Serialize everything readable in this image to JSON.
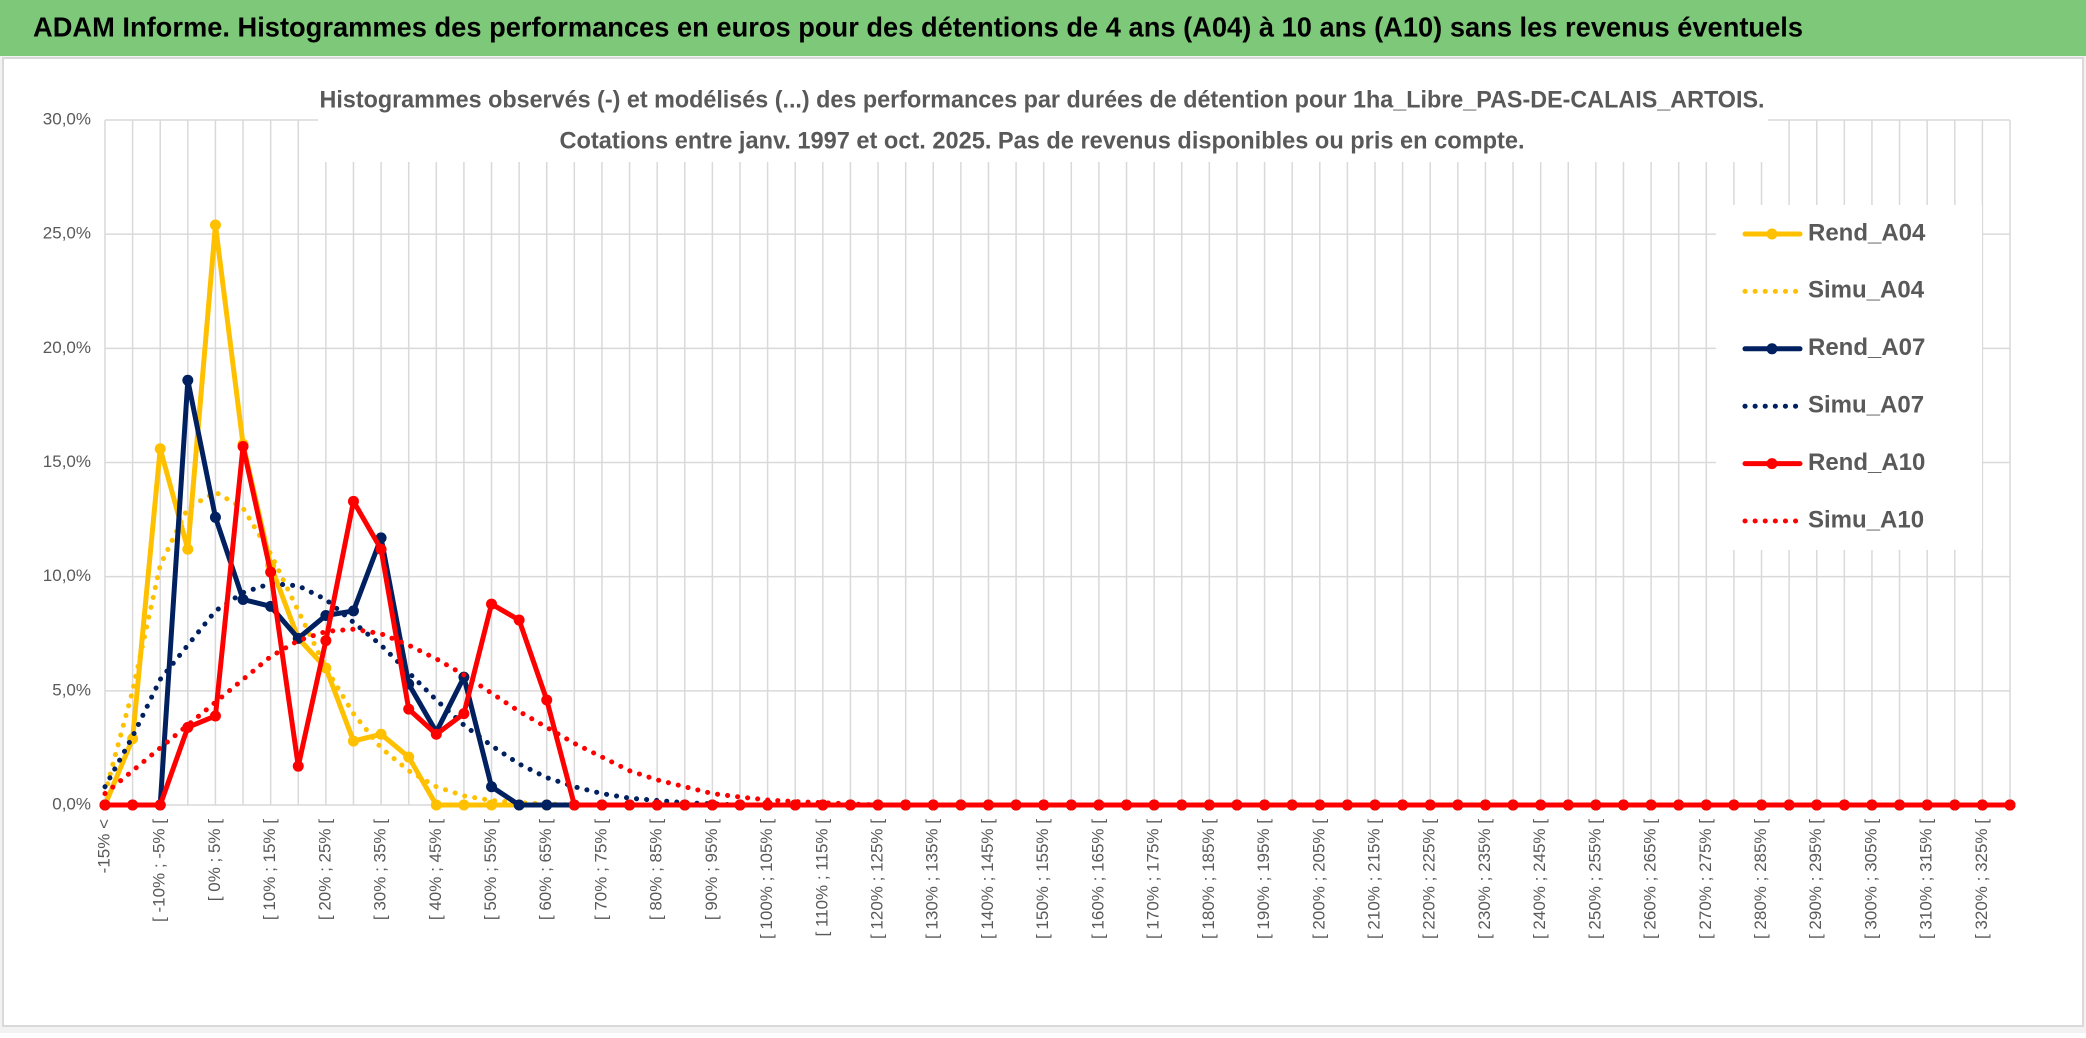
{
  "chart_data": {
    "type": "line",
    "header": "ADAM Informe. Histogrammes des performances en euros pour des détentions de 4 ans (A04) à 10 ans (A10) sans les revenus éventuels",
    "title": "Histogrammes observés (-) et modélisés (...) des performances par durées de détention pour 1ha_Libre_PAS-DE-CALAIS_ARTOIS.",
    "subtitle": "Cotations entre janv. 1997 et oct. 2025. Pas de revenus disponibles ou pris en compte.",
    "categories": [
      "-15% <",
      null,
      "[ -10% ; -5% [",
      null,
      "[ 0% ; 5% [",
      null,
      "[ 10% ; 15% [",
      null,
      "[ 20% ; 25% [",
      null,
      "[ 30% ; 35% [",
      null,
      "[ 40% ; 45% [",
      null,
      "[ 50% ; 55% [",
      null,
      "[ 60% ; 65% [",
      null,
      "[ 70% ; 75% [",
      null,
      "[ 80% ; 85% [",
      null,
      "[ 90% ; 95% [",
      null,
      "[ 100% ; 105% [",
      null,
      "[ 110% ; 115% [",
      null,
      "[ 120% ; 125% [",
      null,
      "[ 130% ; 135% [",
      null,
      "[ 140% ; 145% [",
      null,
      "[ 150% ; 155% [",
      null,
      "[ 160% ; 165% [",
      null,
      "[ 170% ; 175% [",
      null,
      "[ 180% ; 185% [",
      null,
      "[ 190% ; 195% [",
      null,
      "[ 200% ; 205% [",
      null,
      "[ 210% ; 215% [",
      null,
      "[ 220% ; 225% [",
      null,
      "[ 230% ; 235% [",
      null,
      "[ 240% ; 245% [",
      null,
      "[ 250% ; 255% [",
      null,
      "[ 260% ; 265% [",
      null,
      "[ 270% ; 275% [",
      null,
      "[ 280% ; 285% [",
      null,
      "[ 290% ; 295% [",
      null,
      "[ 300% ; 305% [",
      null,
      "[ 310% ; 315% [",
      null,
      "[ 320% ; 325% [",
      null
    ],
    "ylim": [
      0,
      30
    ],
    "yticks": [
      {
        "value": 0,
        "label": "0,0%"
      },
      {
        "value": 5,
        "label": "5,0%"
      },
      {
        "value": 10,
        "label": "10,0%"
      },
      {
        "value": 15,
        "label": "15,0%"
      },
      {
        "value": 20,
        "label": "20,0%"
      },
      {
        "value": 25,
        "label": "25,0%"
      },
      {
        "value": 30,
        "label": "30,0%"
      }
    ],
    "grid": true,
    "legend": "right",
    "series": [
      {
        "name": "Rend_A04",
        "color": "#FFC000",
        "dash": "solid",
        "markers": true,
        "values": [
          0,
          2.9,
          15.6,
          11.2,
          25.4,
          15.8,
          10.5,
          7.3,
          6.0,
          2.8,
          3.1,
          2.1,
          0,
          0,
          0,
          0,
          0,
          0,
          0,
          0,
          0,
          0,
          0,
          0,
          0,
          0,
          0,
          0,
          0,
          0,
          0,
          0,
          0,
          0,
          0,
          0,
          0,
          0,
          0,
          0,
          0,
          0,
          0,
          0,
          0,
          0,
          0,
          0,
          0,
          0,
          0,
          0,
          0,
          0,
          0,
          0,
          0,
          0,
          0,
          0,
          0,
          0,
          0,
          0,
          0,
          0,
          0,
          0,
          0,
          0
        ]
      },
      {
        "name": "Simu_A04",
        "color": "#FFC000",
        "dash": "dotted",
        "markers": false,
        "values": [
          0.5,
          5,
          10.5,
          13,
          13.7,
          13,
          11,
          8.5,
          6,
          4,
          2.5,
          1.5,
          0.8,
          0.4,
          0.2,
          0.1,
          0.05,
          0,
          0,
          0,
          0,
          0,
          0,
          0,
          0,
          0,
          0,
          0,
          0,
          0,
          0,
          0,
          0,
          0,
          0,
          0,
          0,
          0,
          0,
          0,
          0,
          0,
          0,
          0,
          0,
          0,
          0,
          0,
          0,
          0,
          0,
          0,
          0,
          0,
          0,
          0,
          0,
          0,
          0,
          0,
          0,
          0,
          0,
          0,
          0,
          0,
          0,
          0,
          0,
          0
        ]
      },
      {
        "name": "Rend_A07",
        "color": "#002060",
        "dash": "solid",
        "markers": true,
        "values": [
          0,
          0,
          0,
          18.6,
          12.6,
          9.0,
          8.7,
          7.3,
          8.3,
          8.5,
          11.7,
          5.3,
          3.2,
          5.6,
          0.8,
          0,
          0,
          0,
          0,
          0,
          0,
          0,
          0,
          0,
          0,
          0,
          0,
          0,
          0,
          0,
          0,
          0,
          0,
          0,
          0,
          0,
          0,
          0,
          0,
          0,
          0,
          0,
          0,
          0,
          0,
          0,
          0,
          0,
          0,
          0,
          0,
          0,
          0,
          0,
          0,
          0,
          0,
          0,
          0,
          0,
          0,
          0,
          0,
          0,
          0,
          0,
          0,
          0,
          0,
          0
        ]
      },
      {
        "name": "Simu_A07",
        "color": "#002060",
        "dash": "dotted",
        "markers": false,
        "values": [
          0.8,
          3,
          5.5,
          7,
          8.5,
          9.3,
          9.7,
          9.6,
          9.0,
          8.0,
          7.0,
          5.8,
          4.6,
          3.5,
          2.6,
          1.8,
          1.2,
          0.8,
          0.5,
          0.3,
          0.2,
          0.1,
          0.05,
          0,
          0,
          0,
          0,
          0,
          0,
          0,
          0,
          0,
          0,
          0,
          0,
          0,
          0,
          0,
          0,
          0,
          0,
          0,
          0,
          0,
          0,
          0,
          0,
          0,
          0,
          0,
          0,
          0,
          0,
          0,
          0,
          0,
          0,
          0,
          0,
          0,
          0,
          0,
          0,
          0,
          0,
          0,
          0,
          0,
          0,
          0
        ]
      },
      {
        "name": "Rend_A10",
        "color": "#FF0000",
        "dash": "solid",
        "markers": true,
        "values": [
          0,
          0,
          0,
          3.4,
          3.9,
          15.7,
          10.2,
          1.7,
          7.2,
          13.3,
          11.2,
          4.2,
          3.1,
          4.0,
          8.8,
          8.1,
          4.6,
          0,
          0,
          0,
          0,
          0,
          0,
          0,
          0,
          0,
          0,
          0,
          0,
          0,
          0,
          0,
          0,
          0,
          0,
          0,
          0,
          0,
          0,
          0,
          0,
          0,
          0,
          0,
          0,
          0,
          0,
          0,
          0,
          0,
          0,
          0,
          0,
          0,
          0,
          0,
          0,
          0,
          0,
          0,
          0,
          0,
          0,
          0,
          0,
          0,
          0,
          0,
          0,
          0
        ]
      },
      {
        "name": "Simu_A10",
        "color": "#FF0000",
        "dash": "dotted",
        "markers": false,
        "values": [
          0.5,
          1.5,
          2.5,
          3.5,
          4.5,
          5.5,
          6.5,
          7.2,
          7.6,
          7.7,
          7.5,
          7.0,
          6.4,
          5.7,
          4.9,
          4.1,
          3.4,
          2.7,
          2.1,
          1.5,
          1.1,
          0.8,
          0.5,
          0.35,
          0.22,
          0.15,
          0.1,
          0.05,
          0,
          0,
          0,
          0,
          0,
          0,
          0,
          0,
          0,
          0,
          0,
          0,
          0,
          0,
          0,
          0,
          0,
          0,
          0,
          0,
          0,
          0,
          0,
          0,
          0,
          0,
          0,
          0,
          0,
          0,
          0,
          0,
          0,
          0,
          0,
          0,
          0,
          0,
          0,
          0,
          0,
          0
        ]
      }
    ]
  }
}
